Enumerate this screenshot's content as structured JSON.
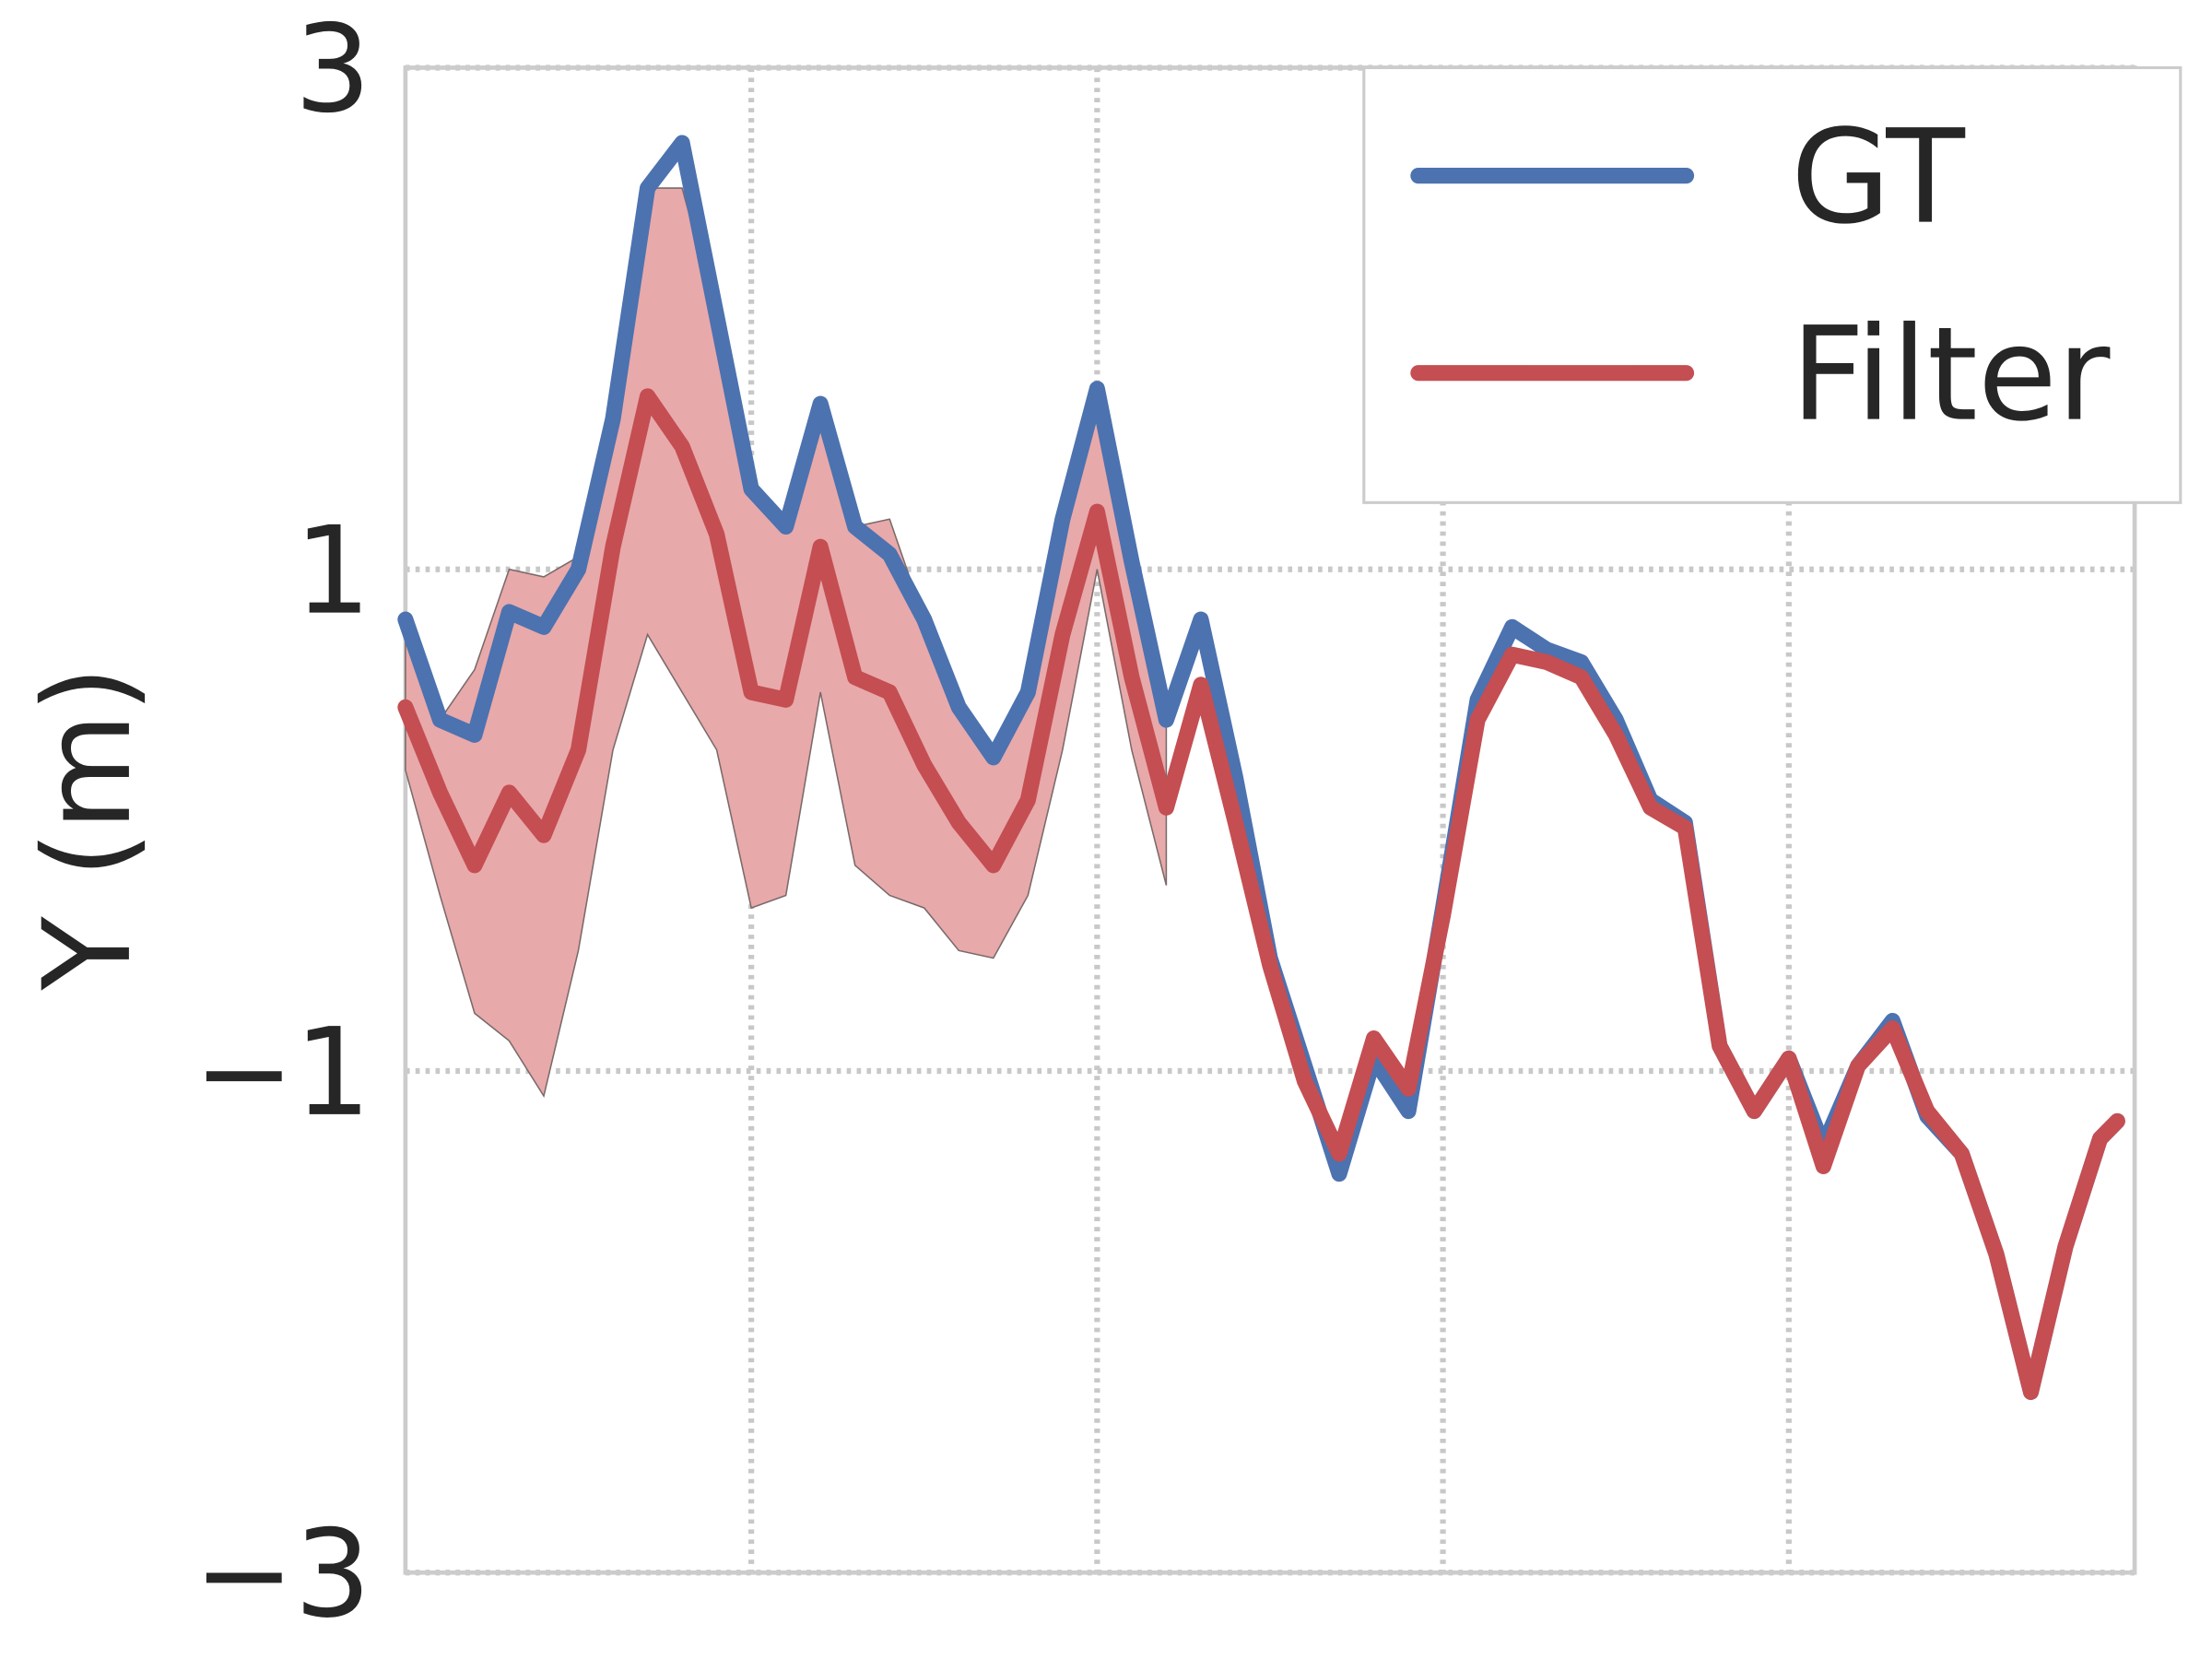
{
  "chart_data": {
    "type": "line",
    "y_label": "Y (m)",
    "x": [
      0,
      2,
      4,
      6,
      8,
      10,
      12,
      14,
      16,
      18,
      20,
      22,
      24,
      26,
      28,
      30,
      32,
      34,
      36,
      38,
      40,
      42,
      44,
      46,
      48,
      50,
      52,
      54,
      56,
      58,
      60,
      62,
      64,
      66,
      68,
      70,
      72,
      74,
      76,
      78,
      80,
      82,
      84,
      86,
      88,
      90,
      92,
      94,
      96,
      98,
      99
    ],
    "xlim": [
      0,
      100
    ],
    "xticks": [
      20,
      40,
      60,
      80
    ],
    "ylim": [
      -3,
      3
    ],
    "yticks": [
      {
        "value": -3,
        "label": "−3"
      },
      {
        "value": -1,
        "label": "−1"
      },
      1,
      3
    ],
    "grid": true,
    "legend": "upper right",
    "series": [
      {
        "name": "GT",
        "color": "#4c72b0",
        "values": [
          0.8,
          0.4,
          0.34,
          0.83,
          0.77,
          1.0,
          1.6,
          2.52,
          2.7,
          2.01,
          1.32,
          1.17,
          1.66,
          1.17,
          1.06,
          0.8,
          0.45,
          0.25,
          0.51,
          1.2,
          1.72,
          1.03,
          0.4,
          0.8,
          0.17,
          -0.55,
          -0.98,
          -1.41,
          -0.95,
          -1.16,
          -0.35,
          0.48,
          0.77,
          0.68,
          0.63,
          0.4,
          0.08,
          -0.01,
          -0.9,
          -1.16,
          -0.95,
          -1.3,
          -0.98,
          -0.8,
          -1.18,
          -1.33,
          -1.73,
          -2.28,
          -1.7,
          -1.27,
          -1.2
        ]
      },
      {
        "name": "Filter",
        "color": "#c44e52",
        "band_color": "#e8a9aa",
        "values": [
          0.45,
          0.11,
          -0.18,
          0.11,
          -0.06,
          0.28,
          1.09,
          1.69,
          1.49,
          1.14,
          0.51,
          0.48,
          1.09,
          0.57,
          0.51,
          0.22,
          -0.01,
          -0.18,
          0.08,
          0.74,
          1.23,
          0.57,
          0.05,
          0.54,
          -0.01,
          -0.58,
          -1.04,
          -1.33,
          -0.87,
          -1.07,
          -0.38,
          0.4,
          0.66,
          0.63,
          0.57,
          0.34,
          0.05,
          -0.03,
          -0.9,
          -1.16,
          -0.95,
          -1.38,
          -0.98,
          -0.83,
          -1.16,
          -1.33,
          -1.73,
          -2.28,
          -1.7,
          -1.27,
          -1.2
        ],
        "upper": [
          0.74,
          0.4,
          0.6,
          1.0,
          0.97,
          1.05,
          1.6,
          2.52,
          2.52,
          2.01,
          1.32,
          1.17,
          1.66,
          1.17,
          1.2,
          0.8,
          0.45,
          0.25,
          0.51,
          1.2,
          1.72,
          1.03,
          0.4,
          null,
          null,
          null,
          null,
          null,
          null,
          null,
          null,
          null,
          null,
          null,
          null,
          null,
          null,
          null,
          null,
          null,
          null,
          null,
          null,
          null,
          null,
          null,
          null,
          null,
          null,
          null,
          null
        ],
        "lower": [
          0.2,
          -0.3,
          -0.77,
          -0.88,
          -1.1,
          -0.52,
          0.28,
          0.74,
          0.51,
          0.28,
          -0.35,
          -0.3,
          0.51,
          -0.18,
          -0.3,
          -0.35,
          -0.52,
          -0.55,
          -0.3,
          0.28,
          1.0,
          0.28,
          -0.26,
          null,
          null,
          null,
          null,
          null,
          null,
          null,
          null,
          null,
          null,
          null,
          null,
          null,
          null,
          null,
          null,
          null,
          null,
          null,
          null,
          null,
          null,
          null,
          null,
          null,
          null,
          null,
          null
        ]
      }
    ]
  }
}
